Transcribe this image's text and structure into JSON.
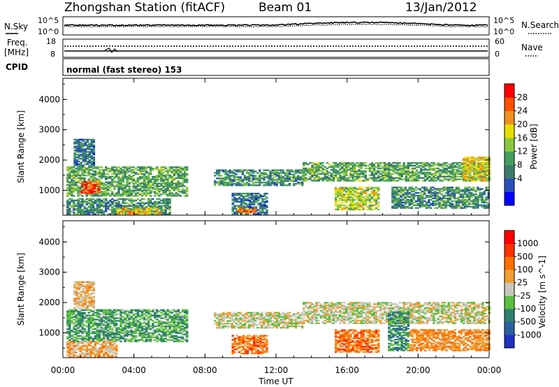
{
  "header": {
    "station": "Zhongshan Station (fitACF)",
    "beam": "Beam 01",
    "date": "13/Jan/2012"
  },
  "noise_panel": {
    "left_label": "N.Sky",
    "right_label": "N.Search",
    "left_ticks": [
      "10^5",
      "10^0"
    ],
    "right_ticks": [
      "10^5",
      "10^0"
    ]
  },
  "freq_panel": {
    "left_label_1": "Freq.",
    "left_label_2": "[MHz]",
    "left_ticks": [
      "18",
      "8"
    ],
    "right_label": "Nave",
    "right_ticks": [
      "60",
      "0"
    ]
  },
  "cpid_panel": {
    "label": "CPID",
    "mode_text": "normal (fast stereo) 153"
  },
  "power_panel": {
    "ylabel": "Slant Range [km]",
    "yticks": [
      "4000",
      "3000",
      "2000",
      "1000"
    ],
    "colorbar_label": "Power [dB]",
    "colorbar_ticks": [
      "28",
      "24",
      "20",
      "16",
      "12",
      "8",
      "4"
    ],
    "colorbar_colors": [
      "#0000ff",
      "#2a50b8",
      "#3c7c6c",
      "#45a060",
      "#8cc840",
      "#e8e000",
      "#f09020",
      "#ff5000",
      "#ff0000"
    ]
  },
  "velocity_panel": {
    "ylabel": "Slant Range [km]",
    "yticks": [
      "4000",
      "3000",
      "2000",
      "1000"
    ],
    "colorbar_label": "Velocity [m s^-1]",
    "colorbar_ticks": [
      "1000",
      "500",
      "100",
      "25",
      "-25",
      "-100",
      "-500",
      "-1000"
    ],
    "colorbar_colors": [
      "#2030c0",
      "#2a60a0",
      "#308070",
      "#5cc040",
      "#c8c8c0",
      "#f0a030",
      "#ff7000",
      "#ff3000",
      "#ff0000"
    ]
  },
  "x_axis": {
    "ticks": [
      "00:00",
      "04:00",
      "08:00",
      "12:00",
      "16:00",
      "20:00",
      "00:00"
    ],
    "label": "Time UT"
  },
  "chart_data": {
    "type": "heatmap",
    "title": "Zhongshan Station (fitACF)  Beam 01  13/Jan/2012",
    "xlabel": "Time UT",
    "x_range_hours": [
      0,
      24
    ],
    "panels": [
      {
        "name": "Power",
        "ylabel": "Slant Range [km]",
        "ylim_km": [
          180,
          4700
        ],
        "colorbar": "Power [dB]",
        "color_range": [
          0,
          30
        ],
        "regions": [
          {
            "t_start": 0.2,
            "t_end": 7.0,
            "r_start": 800,
            "r_end": 1750,
            "value": 12
          },
          {
            "t_start": 1.0,
            "t_end": 2.0,
            "r_start": 900,
            "r_end": 1300,
            "value": 26
          },
          {
            "t_start": 0.6,
            "t_end": 1.8,
            "r_start": 1800,
            "r_end": 2700,
            "value": 8
          },
          {
            "t_start": 0.2,
            "t_end": 6.0,
            "r_start": 200,
            "r_end": 700,
            "value": 10
          },
          {
            "t_start": 3.0,
            "t_end": 5.5,
            "r_start": 200,
            "r_end": 400,
            "value": 20
          },
          {
            "t_start": 8.5,
            "t_end": 13.5,
            "r_start": 1150,
            "r_end": 1650,
            "value": 10
          },
          {
            "t_start": 9.5,
            "t_end": 11.5,
            "r_start": 200,
            "r_end": 900,
            "value": 8
          },
          {
            "t_start": 9.8,
            "t_end": 10.8,
            "r_start": 250,
            "r_end": 420,
            "value": 24
          },
          {
            "t_start": 13.5,
            "t_end": 24.0,
            "r_start": 1300,
            "r_end": 1900,
            "value": 12
          },
          {
            "t_start": 15.3,
            "t_end": 17.8,
            "r_start": 350,
            "r_end": 1100,
            "value": 16
          },
          {
            "t_start": 18.5,
            "t_end": 24.0,
            "r_start": 400,
            "r_end": 1100,
            "value": 10
          },
          {
            "t_start": 22.5,
            "t_end": 24.0,
            "r_start": 1300,
            "r_end": 2100,
            "value": 18
          }
        ]
      },
      {
        "name": "Velocity",
        "ylabel": "Slant Range [km]",
        "ylim_km": [
          180,
          4700
        ],
        "colorbar": "Velocity [m s^-1]",
        "color_range": [
          -1000,
          1000
        ],
        "regions": [
          {
            "t_start": 0.2,
            "t_end": 7.0,
            "r_start": 700,
            "r_end": 1750,
            "value": -300
          },
          {
            "t_start": 0.2,
            "t_end": 3.0,
            "r_start": 200,
            "r_end": 700,
            "value": 200
          },
          {
            "t_start": 0.6,
            "t_end": 1.8,
            "r_start": 1800,
            "r_end": 2700,
            "value": 150
          },
          {
            "t_start": 8.5,
            "t_end": 13.5,
            "r_start": 1150,
            "r_end": 1650,
            "value": 0
          },
          {
            "t_start": 9.5,
            "t_end": 11.5,
            "r_start": 300,
            "r_end": 900,
            "value": 400
          },
          {
            "t_start": 13.5,
            "t_end": 24.0,
            "r_start": 1300,
            "r_end": 2000,
            "value": 0
          },
          {
            "t_start": 15.3,
            "t_end": 17.8,
            "r_start": 350,
            "r_end": 1100,
            "value": 450
          },
          {
            "t_start": 18.3,
            "t_end": 19.5,
            "r_start": 400,
            "r_end": 1700,
            "value": -400
          },
          {
            "t_start": 19.5,
            "t_end": 24.0,
            "r_start": 400,
            "r_end": 1100,
            "value": 300
          }
        ]
      }
    ]
  }
}
